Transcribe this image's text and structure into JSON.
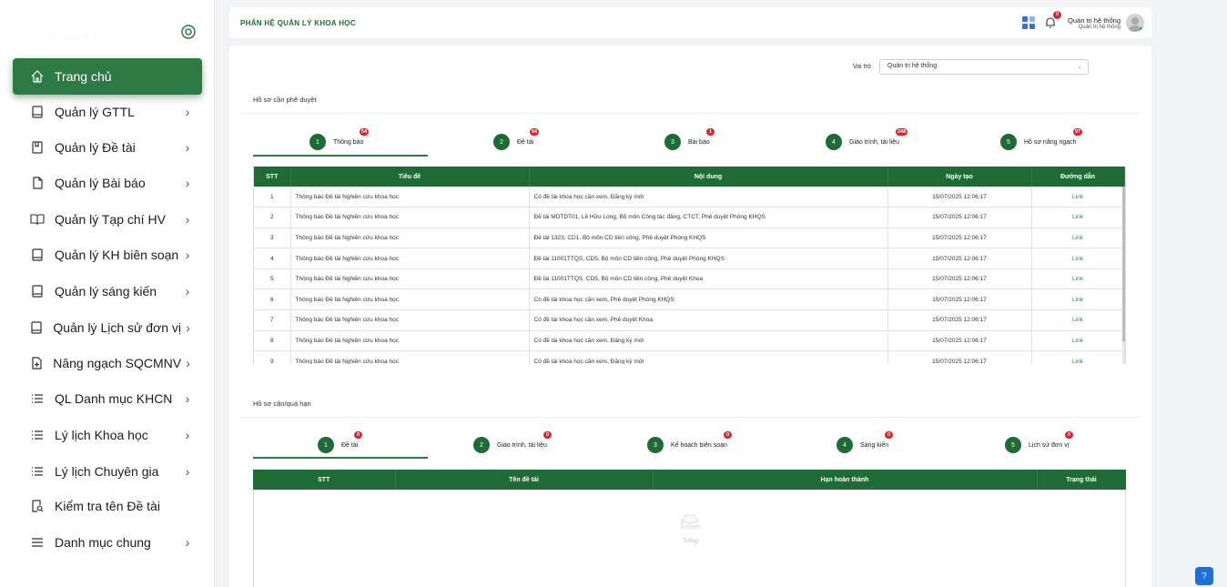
{
  "header": {
    "title": "PHÂN HỆ QUẢN LÝ KHOA HỌC",
    "notif_count": "9",
    "user_name": "Quản trị hệ thống",
    "user_role": "Quản trị hệ thống"
  },
  "sidebar": {
    "items": [
      {
        "label": "Trang chủ",
        "icon": "home-icon",
        "chevron": false
      },
      {
        "label": "Quản lý GTTL",
        "icon": "book-icon",
        "chevron": true
      },
      {
        "label": "Quản lý Đề tài",
        "icon": "bookmark-icon",
        "chevron": true
      },
      {
        "label": "Quản lý Bài báo",
        "icon": "file-icon",
        "chevron": true
      },
      {
        "label": "Quản lý Tạp chí HV",
        "icon": "open-book-icon",
        "chevron": true
      },
      {
        "label": "Quản lý KH biên soạn",
        "icon": "book-icon",
        "chevron": true
      },
      {
        "label": "Quản lý sáng kiến",
        "icon": "book-icon",
        "chevron": true
      },
      {
        "label": "Quản lý Lịch sử đơn vị",
        "icon": "book-icon",
        "chevron": true
      },
      {
        "label": "Nâng ngạch SQCMNV",
        "icon": "file-plus-icon",
        "chevron": true
      },
      {
        "label": "QL Danh mục KHCN",
        "icon": "list-icon",
        "chevron": true
      },
      {
        "label": "Lý lịch Khoa học",
        "icon": "list-icon",
        "chevron": true
      },
      {
        "label": "Lý lịch Chuyên gia",
        "icon": "list-icon",
        "chevron": true
      },
      {
        "label": "Kiểm tra tên Đề tài",
        "icon": "search-doc-icon",
        "chevron": false
      },
      {
        "label": "Danh mục chung",
        "icon": "menu-icon",
        "chevron": true
      }
    ]
  },
  "role": {
    "label": "Vai trò",
    "value": "Quản trị hệ thống"
  },
  "pending": {
    "title": "Hồ sơ cần phê duyệt",
    "steps": [
      {
        "num": "1",
        "label": "Thông báo",
        "badge": "54"
      },
      {
        "num": "2",
        "label": "Đề tài",
        "badge": "54"
      },
      {
        "num": "3",
        "label": "Bài báo",
        "badge": "1"
      },
      {
        "num": "4",
        "label": "Giáo trình, tài liệu",
        "badge": "248"
      },
      {
        "num": "5",
        "label": "Hồ sơ nâng ngạch",
        "badge": "97"
      }
    ],
    "columns": [
      "STT",
      "Tiêu đề",
      "Nội dung",
      "Ngày tạo",
      "Đường dẫn"
    ],
    "rows": [
      [
        "1",
        "Thông báo Đề tài Nghiên cứu khoa học",
        "Có đề tài khoa học cần xem, Đăng ký mới",
        "15/07/2025 12:06:17",
        "Link"
      ],
      [
        "2",
        "Thông báo Đề tài Nghiên cứu khoa học",
        "Đề tài MDTDT01, Lê Hữu Long, Bộ môn Công tác đảng, CTCT, Phê duyệt Phòng KHQS",
        "15/07/2025 12:06:17",
        "Link"
      ],
      [
        "3",
        "Thông báo Đề tài Nghiên cứu khoa học",
        "Đề tài 1323, CD1, Bộ môn CD tiền công, Phê duyệt Phòng KHQS",
        "15/07/2025 12:06:17",
        "Link"
      ],
      [
        "4",
        "Thông báo Đề tài Nghiên cứu khoa học",
        "Đề tài 11001TTQS, CD5, Bộ môn CD tiền công, Phê duyệt Phòng KHQS",
        "15/07/2025 12:06:17",
        "Link"
      ],
      [
        "5",
        "Thông báo Đề tài Nghiên cứu khoa học",
        "Đề tài 11001TTQS, CD5, Bộ môn CD tiền công, Phê duyệt Khoa",
        "15/07/2025 12:06:17",
        "Link"
      ],
      [
        "6",
        "Thông báo Đề tài Nghiên cứu khoa học",
        "Có đề tài khoa học cần xem, Phê duyệt Phòng KHQS",
        "15/07/2025 12:06:17",
        "Link"
      ],
      [
        "7",
        "Thông báo Đề tài Nghiên cứu khoa học",
        "Có đề tài khoa học cần xem, Phê duyệt Khoa",
        "15/07/2025 12:06:17",
        "Link"
      ],
      [
        "8",
        "Thông báo Đề tài Nghiên cứu khoa học",
        "Có đề tài khoa học cần xem, Đăng ký mới",
        "15/07/2025 12:06:17",
        "Link"
      ],
      [
        "9",
        "Thông báo Đề tài Nghiên cứu khoa học",
        "Có đề tài khoa học cần xem, Đăng ký mới",
        "15/07/2025 12:06:17",
        "Link"
      ]
    ]
  },
  "overdue": {
    "title": "Hồ sơ cận/quá hạn",
    "steps": [
      {
        "num": "1",
        "label": "Đề tài",
        "badge": "0"
      },
      {
        "num": "2",
        "label": "Giáo trình, tài liệu",
        "badge": "0"
      },
      {
        "num": "3",
        "label": "Kế hoạch biên soạn",
        "badge": "0"
      },
      {
        "num": "4",
        "label": "Sáng kiến",
        "badge": "0"
      },
      {
        "num": "5",
        "label": "Lịch sử đơn vị",
        "badge": "0"
      }
    ],
    "columns": [
      "STT",
      "Tên đề tài",
      "Hạn hoàn thành",
      "Trạng thái"
    ],
    "empty_text": "Trống"
  }
}
